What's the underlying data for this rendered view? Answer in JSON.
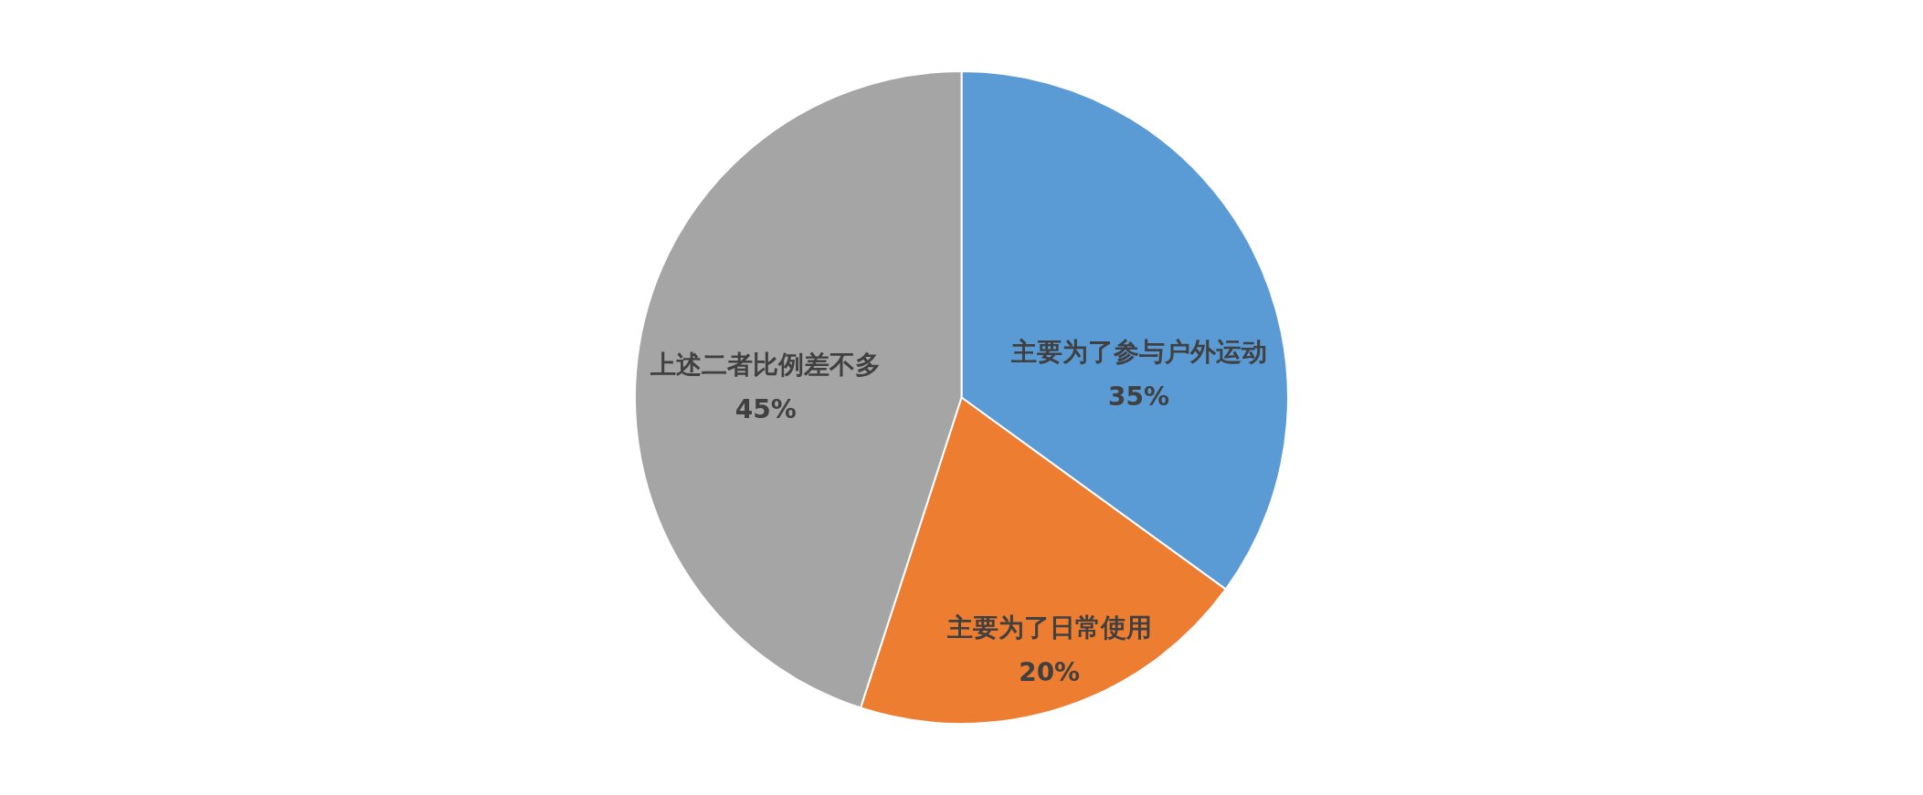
{
  "chart_data": {
    "type": "pie",
    "categories": [
      "主要为了参与户外运动",
      "主要为了日常使用",
      "上述二者比例差不多"
    ],
    "values": [
      35,
      20,
      45
    ],
    "colors": [
      "#5b9bd5",
      "#ed7d31",
      "#a5a5a5"
    ],
    "value_labels": [
      "35%",
      "20%",
      "45%"
    ]
  }
}
